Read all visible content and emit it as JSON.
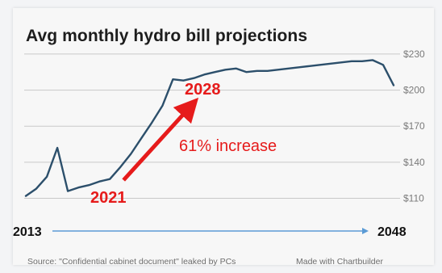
{
  "colors": {
    "line": "#2c4f6b",
    "grid": "#c9c9c9",
    "tick": "#7a7a7a",
    "annotation": "#e61b1b",
    "timeline": "#5b9bd5"
  },
  "chart_data": {
    "type": "line",
    "title": "Avg monthly hydro bill projections",
    "y_ticks": [
      "$230",
      "$200",
      "$170",
      "$140",
      "$110"
    ],
    "y_tick_values": [
      230,
      200,
      170,
      140,
      110
    ],
    "ylim": [
      105,
      238
    ],
    "xlim": [
      2013,
      2048
    ],
    "x_start_label": "2013",
    "x_end_label": "2048",
    "grid": true,
    "series": [
      {
        "x": [
          2013,
          2014,
          2015,
          2016,
          2017,
          2018,
          2019,
          2020,
          2021,
          2022,
          2023,
          2024,
          2025,
          2026,
          2027,
          2028,
          2029,
          2030,
          2031,
          2032,
          2033,
          2034,
          2035,
          2036,
          2037,
          2038,
          2039,
          2040,
          2041,
          2042,
          2043,
          2044,
          2045,
          2046,
          2047,
          2048
        ],
        "values": [
          112,
          118,
          128,
          152,
          116,
          119,
          121,
          124,
          126,
          136,
          147,
          160,
          173,
          187,
          209,
          208,
          210,
          213,
          215,
          217,
          218,
          215,
          216,
          216,
          217,
          218,
          219,
          220,
          221,
          222,
          223,
          224,
          224,
          225,
          221,
          204
        ]
      }
    ],
    "annotations": {
      "start_label": "2021",
      "end_label": "2028",
      "change_label": "61% increase"
    }
  },
  "footer": {
    "source": "Source: \"Confidential cabinet document\" leaked by PCs",
    "credit": "Made with Chartbuilder"
  }
}
